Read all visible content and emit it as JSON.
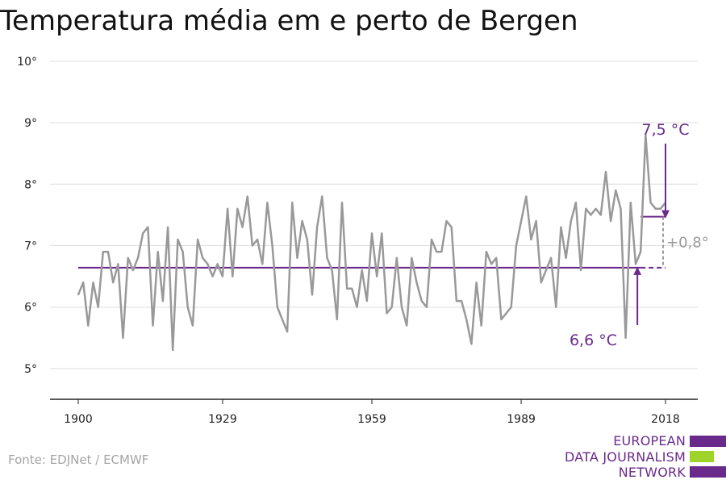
{
  "chart_data": {
    "type": "line",
    "title": "Temperatura média em e perto de Bergen",
    "xlim": [
      1900,
      2018
    ],
    "ylim": [
      4.5,
      10.3
    ],
    "grid": true,
    "x_ticks": [
      {
        "value": 1900,
        "label": "1900"
      },
      {
        "value": 1929,
        "label": "1929"
      },
      {
        "value": 1959,
        "label": "1959"
      },
      {
        "value": 1989,
        "label": "1989"
      },
      {
        "value": 2018,
        "label": "2018"
      }
    ],
    "y_ticks": [
      {
        "value": 5,
        "label": "5°"
      },
      {
        "value": 6,
        "label": "6°"
      },
      {
        "value": 7,
        "label": "7°"
      },
      {
        "value": 8,
        "label": "8°"
      },
      {
        "value": 9,
        "label": "9°"
      },
      {
        "value": 10,
        "label": "10°"
      }
    ],
    "series": [
      {
        "x": [
          1900,
          1901,
          1902,
          1903,
          1904,
          1905,
          1906,
          1907,
          1908,
          1909,
          1910,
          1911,
          1912,
          1913,
          1914,
          1915,
          1916,
          1917,
          1918,
          1919,
          1920,
          1921,
          1922,
          1923,
          1924,
          1925,
          1926,
          1927,
          1928,
          1929,
          1930,
          1931,
          1932,
          1933,
          1934,
          1935,
          1936,
          1937,
          1938,
          1939,
          1940,
          1941,
          1942,
          1943,
          1944,
          1945,
          1946,
          1947,
          1948,
          1949,
          1950,
          1951,
          1952,
          1953,
          1954,
          1955,
          1956,
          1957,
          1958,
          1959,
          1960,
          1961,
          1962,
          1963,
          1964,
          1965,
          1966,
          1967,
          1968,
          1969,
          1970,
          1971,
          1972,
          1973,
          1974,
          1975,
          1976,
          1977,
          1978,
          1979,
          1980,
          1981,
          1982,
          1983,
          1984,
          1985,
          1986,
          1987,
          1988,
          1989,
          1990,
          1991,
          1992,
          1993,
          1994,
          1995,
          1996,
          1997,
          1998,
          1999,
          2000,
          2001,
          2002,
          2003,
          2004,
          2005,
          2006,
          2007,
          2008,
          2009,
          2010,
          2011,
          2012,
          2013,
          2014,
          2015,
          2016,
          2017,
          2018
        ],
        "values": [
          6.2,
          6.4,
          5.7,
          6.4,
          6.0,
          6.9,
          6.9,
          6.4,
          6.7,
          5.5,
          6.8,
          6.6,
          6.8,
          7.2,
          7.3,
          5.7,
          6.9,
          6.1,
          7.3,
          5.3,
          7.1,
          6.9,
          6.0,
          5.7,
          7.1,
          6.8,
          6.7,
          6.5,
          6.7,
          6.5,
          7.6,
          6.5,
          7.6,
          7.3,
          7.8,
          7.0,
          7.1,
          6.7,
          7.7,
          7.0,
          6.0,
          5.8,
          5.6,
          7.7,
          6.8,
          7.4,
          7.1,
          6.2,
          7.3,
          7.8,
          6.8,
          6.6,
          5.8,
          7.7,
          6.3,
          6.3,
          6.0,
          6.6,
          6.1,
          7.2,
          6.5,
          7.2,
          5.9,
          6.0,
          6.8,
          6.0,
          5.7,
          6.8,
          6.4,
          6.1,
          6.0,
          7.1,
          6.9,
          6.9,
          7.4,
          7.3,
          6.1,
          6.1,
          5.8,
          5.4,
          6.4,
          5.7,
          6.9,
          6.7,
          6.8,
          5.8,
          5.9,
          6.0,
          7.0,
          7.4,
          7.8,
          7.1,
          7.4,
          6.4,
          6.6,
          6.8,
          6.0,
          7.3,
          6.8,
          7.4,
          7.7,
          6.6,
          7.6,
          7.5,
          7.6,
          7.5,
          8.2,
          7.4,
          7.9,
          7.6,
          5.5,
          7.7,
          6.7,
          6.9,
          8.8,
          7.7,
          7.6,
          7.6,
          7.7
        ]
      }
    ],
    "reference_lines": [
      {
        "from": 1900,
        "to": 2013,
        "value": 6.64,
        "style": "solid"
      },
      {
        "from": 2013,
        "to": 2018,
        "value": 6.64,
        "style": "dashed"
      },
      {
        "from": 2013,
        "to": 2018,
        "value": 7.47,
        "style": "solid"
      }
    ],
    "annotations": [
      {
        "text": "7,5 °C",
        "x": 2018,
        "y": 7.47,
        "arrow": "down"
      },
      {
        "text": "6,6 °C",
        "x": 2003,
        "y": 6.64,
        "arrow": "up"
      },
      {
        "text": "+0,8°",
        "x": 2018,
        "y": 7.05
      }
    ]
  },
  "source": "Fonte: EDJNet / ECMWF",
  "logo": {
    "lines": [
      "EUROPEAN",
      "DATA JOURNALISM",
      "NETWORK"
    ],
    "colors": [
      "#6a2a8c",
      "#9ed32a",
      "#6a2a8c"
    ]
  },
  "colors": {
    "line": "#999999",
    "accent": "#6a2a8c",
    "grid": "#dddddd",
    "axis": "#222222",
    "diff": "#9a9a9a"
  }
}
